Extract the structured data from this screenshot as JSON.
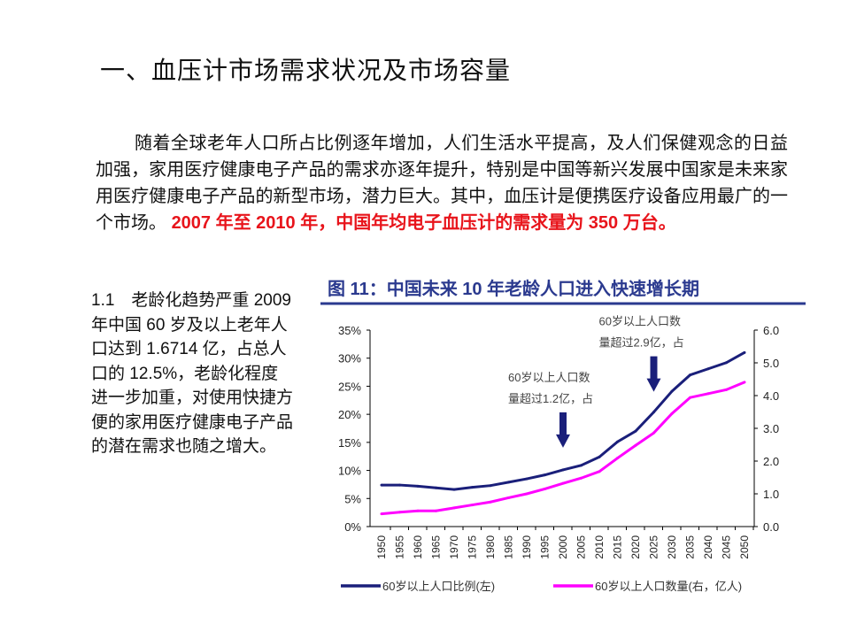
{
  "slide": {
    "title": "一、血压计市场需求状况及市场容量",
    "paragraph": "随着全球老年人口所占比例逐年增加，人们生活水平提高，及人们保健观念的日益加强，家用医疗健康电子产品的需求亦逐年提升，特别是中国等新兴发展中国家是未来家用医疗健康电子产品的新型市场，潜力巨大。其中，血压计是便携医疗设备应用最广的一个市场。",
    "paragraph_highlight": "2007 年至 2010 年，中国年均电子血压计的需求量为 350 万台。",
    "highlight_color": "#e8141b",
    "side_text": "1.1　老龄化趋势严重 2009 年中国 60 岁及以上老年人口达到 1.6714 亿，占总人口的 12.5%，老龄化程度进一步加重，对使用快捷方便的家用医疗健康电子产品的潜在需求也随之增大。"
  },
  "chart_data": {
    "type": "line",
    "title": "图 11：中国未来 10 年老龄人口进入快速增长期",
    "x": [
      1950,
      1955,
      1960,
      1965,
      1970,
      1975,
      1980,
      1985,
      1990,
      1995,
      2000,
      2005,
      2010,
      2015,
      2020,
      2025,
      2030,
      2035,
      2040,
      2045,
      2050
    ],
    "x_tick_labels": [
      "1950",
      "1955",
      "1960",
      "1965",
      "1970",
      "1975",
      "1980",
      "1985",
      "1990",
      "1995",
      "2000",
      "2005",
      "2010",
      "2015",
      "2020",
      "2025",
      "2030",
      "2035",
      "2040",
      "2045",
      "2050"
    ],
    "y_left": {
      "ylim": [
        0,
        35
      ],
      "ticks": [
        "0%",
        "5%",
        "10%",
        "15%",
        "20%",
        "25%",
        "30%",
        "35%"
      ]
    },
    "y_right": {
      "ylim": [
        0,
        6
      ],
      "ticks": [
        "0.0",
        "1.0",
        "2.0",
        "3.0",
        "4.0",
        "5.0",
        "6.0"
      ]
    },
    "series": [
      {
        "name": "60岁以上人口比例(左)",
        "axis": "left",
        "color": "#1a1f7a",
        "values": [
          7.4,
          7.4,
          7.2,
          6.9,
          6.6,
          7.0,
          7.3,
          7.9,
          8.5,
          9.2,
          10.1,
          10.9,
          12.4,
          15.1,
          17.0,
          20.4,
          24.1,
          27.0,
          28.1,
          29.2,
          31.0
        ]
      },
      {
        "name": "60岁以上人口数量(右，亿人)",
        "axis": "right",
        "color": "#ff00ff",
        "values": [
          0.39,
          0.44,
          0.48,
          0.48,
          0.57,
          0.66,
          0.75,
          0.88,
          1.0,
          1.15,
          1.32,
          1.48,
          1.68,
          2.09,
          2.48,
          2.86,
          3.45,
          3.94,
          4.06,
          4.18,
          4.41
        ]
      }
    ],
    "annotations": [
      {
        "year": 2000,
        "line1": "60岁以上人口数",
        "line2": "量超过1.2亿，占"
      },
      {
        "year": 2025,
        "line1": "60岁以上人口数",
        "line2": "量超过2.9亿，占"
      }
    ],
    "legend": "bottom",
    "grid": false,
    "title_color": "#2b3a8f"
  }
}
